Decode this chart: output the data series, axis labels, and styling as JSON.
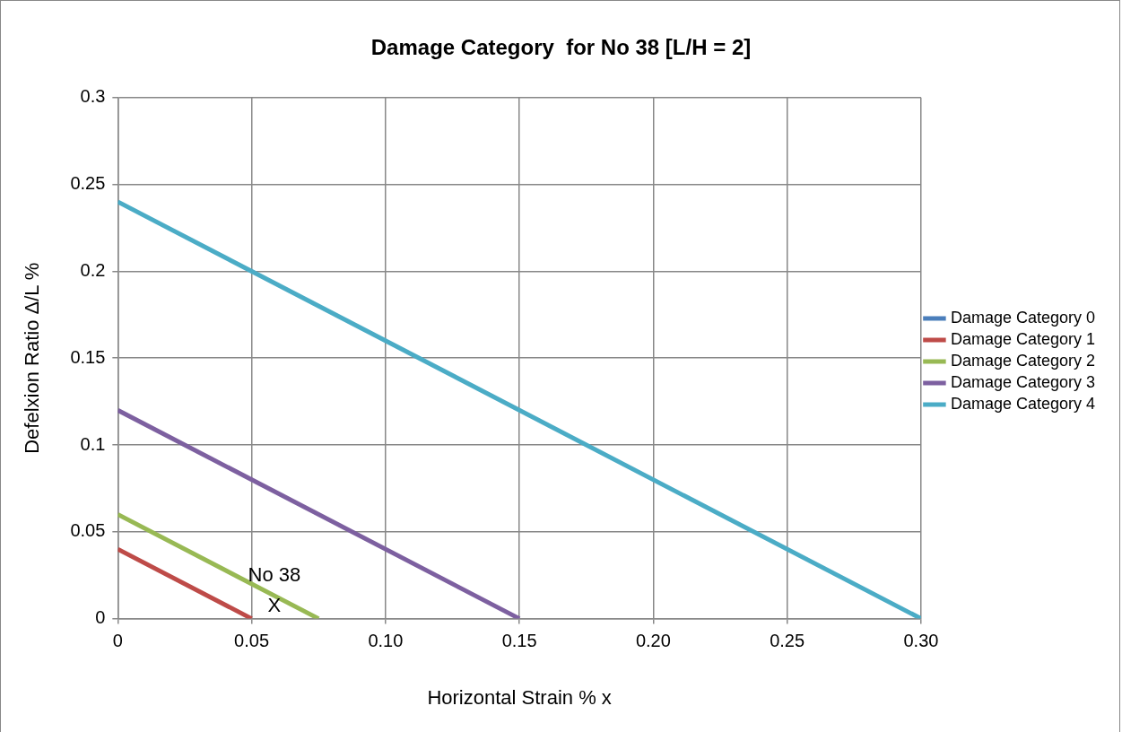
{
  "chart_data": {
    "type": "line",
    "title": "Damage Category  for No 38 [L/H = 2]",
    "xlabel": "Horizontal Strain % x",
    "ylabel": "Defelxion Ratio Δ/L %",
    "xlim": [
      0,
      0.3
    ],
    "xticks": [
      0,
      0.05,
      {
        "value": 0.1,
        "label": "0.10"
      },
      {
        "value": 0.15,
        "label": "0.15"
      },
      {
        "value": 0.2,
        "label": "0.20"
      },
      {
        "value": 0.25,
        "label": "0.25"
      },
      {
        "value": 0.3,
        "label": "0.30"
      }
    ],
    "ylim": [
      0,
      0.3
    ],
    "yticks": [
      0,
      0.05,
      0.1,
      0.15,
      0.2,
      0.25,
      0.3
    ],
    "grid": true,
    "legend": "right",
    "marker": "none",
    "line_style": "solid",
    "series": [
      {
        "name": "Damage Category 0",
        "color": "#4a7ebb"
      },
      {
        "name": "Damage Category 1",
        "color": "#be4b48",
        "x": [
          0,
          0.05
        ],
        "values": [
          0.04,
          0
        ]
      },
      {
        "name": "Damage Category 2",
        "color": "#98b954",
        "x": [
          0,
          0.075
        ],
        "values": [
          0.06,
          0
        ]
      },
      {
        "name": "Damage Category 3",
        "color": "#7d60a0",
        "x": [
          0,
          0.15
        ],
        "values": [
          0.12,
          0
        ]
      },
      {
        "name": "Damage Category 4",
        "color": "#4bacc6",
        "x": [
          0,
          0.3
        ],
        "values": [
          0.24,
          0
        ]
      }
    ],
    "annotations": [
      "No 38",
      "X"
    ]
  }
}
